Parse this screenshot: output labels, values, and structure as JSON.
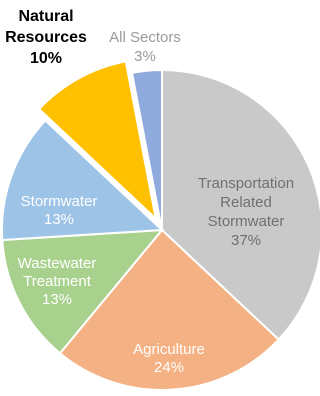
{
  "chart_data": {
    "type": "pie",
    "title": "",
    "slices": [
      {
        "name_lines": [
          "Transportation",
          "Related",
          "Stormwater"
        ],
        "value": 37,
        "value_label": "37%",
        "color": "#C9C9C9",
        "text_color": "#707070",
        "exploded": false
      },
      {
        "name_lines": [
          "Agriculture"
        ],
        "value": 24,
        "value_label": "24%",
        "color": "#F4B183",
        "text_color": "#ffffff",
        "exploded": false
      },
      {
        "name_lines": [
          "Wastewater",
          "Treatment"
        ],
        "value": 13,
        "value_label": "13%",
        "color": "#A9D18E",
        "text_color": "#ffffff",
        "exploded": false
      },
      {
        "name_lines": [
          "Stormwater"
        ],
        "value": 13,
        "value_label": "13%",
        "color": "#9DC3E6",
        "text_color": "#ffffff",
        "exploded": false
      },
      {
        "name_lines": [
          "Natural",
          "Resources"
        ],
        "value": 10,
        "value_label": "10%",
        "color": "#FFC000",
        "text_color": "#000000",
        "exploded": true,
        "label_outside": true,
        "bold": true
      },
      {
        "name_lines": [
          "All Sectors"
        ],
        "value": 3,
        "value_label": "3%",
        "color": "#8FAADC",
        "text_color": "#9A9A9A",
        "exploded": false,
        "label_outside": true
      }
    ],
    "legend": "none",
    "start_angle_deg": 0,
    "direction": "clockwise"
  }
}
